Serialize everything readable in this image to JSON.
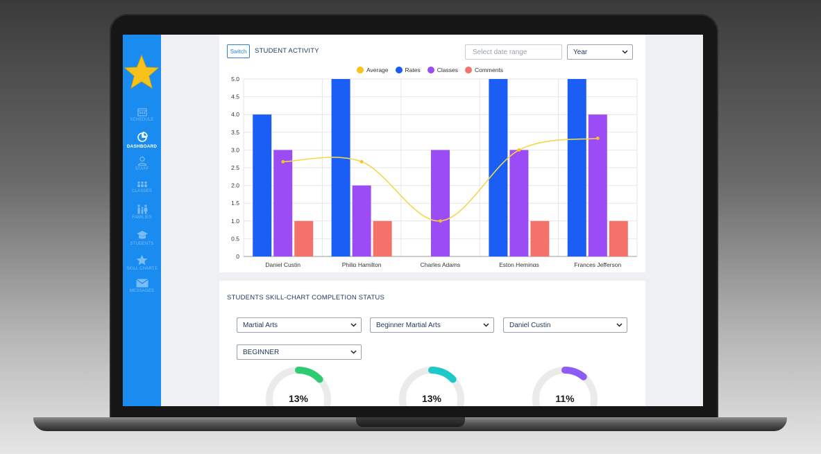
{
  "sidebar": {
    "items": [
      {
        "label": "SCHEDULE",
        "icon": "calendar-icon",
        "active": false
      },
      {
        "label": "DASHBOARD",
        "icon": "pie-chart-icon",
        "active": true
      },
      {
        "label": "STAFF",
        "icon": "person-icon",
        "active": false
      },
      {
        "label": "CLASSES",
        "icon": "group-icon",
        "active": false
      },
      {
        "label": "FAMILIES",
        "icon": "family-icon",
        "active": false
      },
      {
        "label": "STUDENTS",
        "icon": "graduation-cap-icon",
        "active": false
      },
      {
        "label": "SKILL CHARTS",
        "icon": "star-icon",
        "active": false
      },
      {
        "label": "MESSAGES",
        "icon": "envelope-icon",
        "active": false
      }
    ]
  },
  "activity": {
    "switch_label": "Switch",
    "title": "STUDENT ACTIVITY",
    "date_placeholder": "Select date range",
    "period_select": "Year"
  },
  "chart_data": {
    "type": "bar",
    "categories": [
      "Daniel Custin",
      "Philip Hamilton",
      "Charles Adams",
      "Eston Hemings",
      "Frances Jefferson"
    ],
    "series": [
      {
        "name": "Rates",
        "color": "#1a5ef5",
        "values": [
          4,
          5,
          0,
          5,
          5
        ]
      },
      {
        "name": "Classes",
        "color": "#9b4cf5",
        "values": [
          3,
          2,
          3,
          3,
          4
        ]
      },
      {
        "name": "Comments",
        "color": "#f5726a",
        "values": [
          1,
          1,
          0,
          1,
          1
        ]
      }
    ],
    "line_series": {
      "name": "Average",
      "color": "#f5d64a",
      "values": [
        2.67,
        2.67,
        1.0,
        3.0,
        3.33
      ]
    },
    "legend_order": [
      "Average",
      "Rates",
      "Classes",
      "Comments"
    ],
    "yticks": [
      "0",
      "0.5",
      "1.0",
      "1.5",
      "2.0",
      "2.5",
      "3.0",
      "3.5",
      "4.0",
      "4.5",
      "5.0"
    ],
    "ylim": [
      0,
      5
    ],
    "grid": true,
    "legend_position": "top-center"
  },
  "skill": {
    "title": "STUDENTS SKILL-CHART COMPLETION STATUS",
    "selects": [
      "Martial Arts",
      "Beginner Martial Arts",
      "Daniel Custin",
      "BEGINNER"
    ],
    "donuts": [
      {
        "percent": 13,
        "label": "13%",
        "color": "#2ecc71"
      },
      {
        "percent": 13,
        "label": "13%",
        "color": "#1ec8c8"
      },
      {
        "percent": 11,
        "label": "11%",
        "color": "#8b5cf6"
      }
    ]
  }
}
